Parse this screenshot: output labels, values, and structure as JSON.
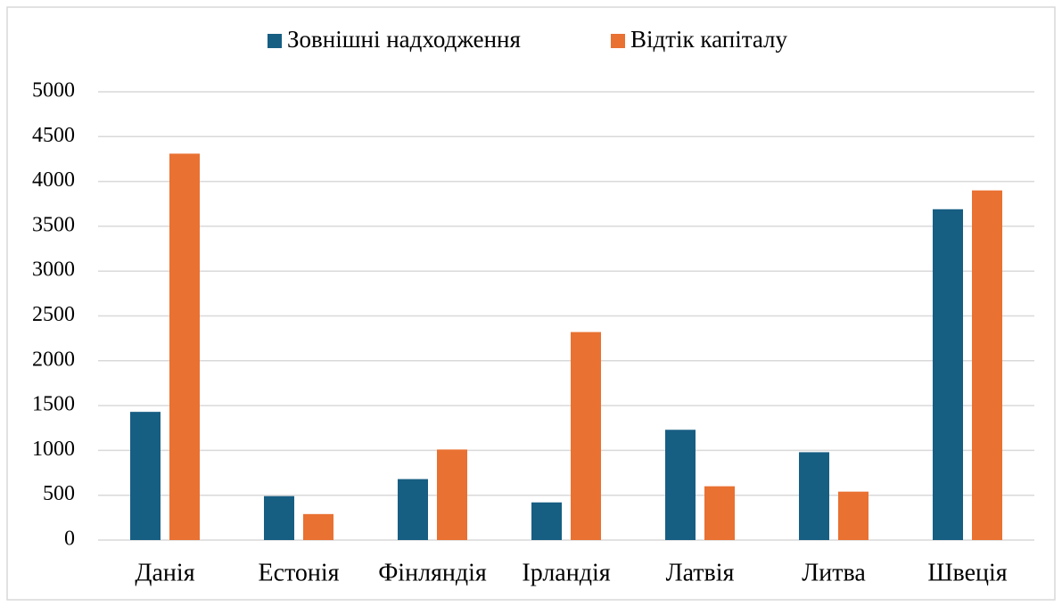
{
  "chart_data": {
    "type": "bar",
    "categories": [
      "Данія",
      "Естонія",
      "Фінляндія",
      "Ірландія",
      "Латвія",
      "Литва",
      "Швеція"
    ],
    "series": [
      {
        "name": "Зовнішні надходження",
        "color": "#175e83",
        "values": [
          1430,
          490,
          680,
          420,
          1230,
          980,
          3690
        ]
      },
      {
        "name": "Відтік капіталу",
        "color": "#e97132",
        "values": [
          4310,
          290,
          1010,
          2320,
          600,
          540,
          3900
        ]
      }
    ],
    "ylim": [
      0,
      5000
    ],
    "yticks": [
      0,
      500,
      1000,
      1500,
      2000,
      2500,
      3000,
      3500,
      4000,
      4500,
      5000
    ],
    "grid": true,
    "legend": "top"
  }
}
